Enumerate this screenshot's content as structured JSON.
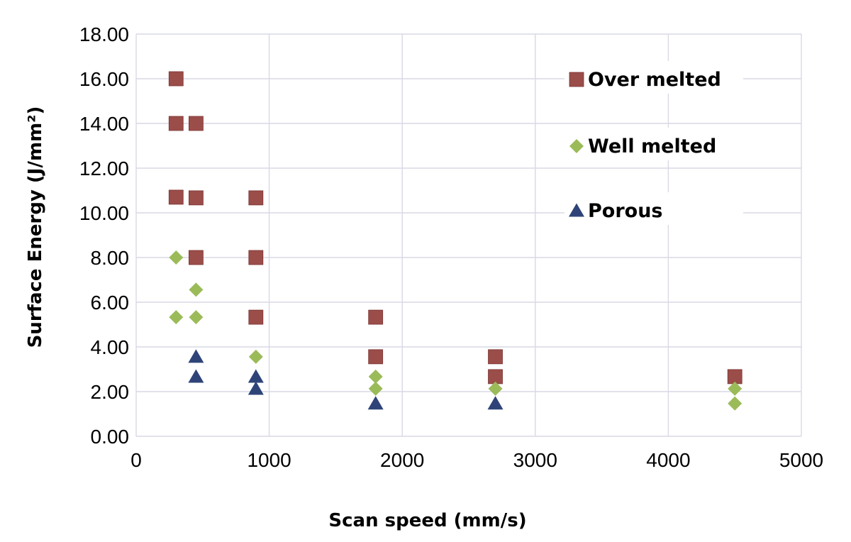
{
  "chart_data": {
    "type": "scatter",
    "xlabel": "Scan speed (mm/s)",
    "ylabel": "Surface Energy (J/mm²)",
    "xlim": [
      0,
      5000
    ],
    "ylim": [
      0,
      18
    ],
    "x_ticks": [
      "0",
      "1000",
      "2000",
      "3000",
      "4000",
      "5000"
    ],
    "y_ticks": [
      "0.00",
      "2.00",
      "4.00",
      "6.00",
      "8.00",
      "10.00",
      "12.00",
      "14.00",
      "16.00",
      "18.00"
    ],
    "grid": true,
    "legend_position": "top-right",
    "series": [
      {
        "name": "Over melted",
        "marker": "square",
        "color": "#9b4d4a",
        "points": [
          {
            "x": 300,
            "y": 16.0
          },
          {
            "x": 300,
            "y": 14.0
          },
          {
            "x": 450,
            "y": 14.0
          },
          {
            "x": 300,
            "y": 10.7
          },
          {
            "x": 450,
            "y": 10.67
          },
          {
            "x": 900,
            "y": 10.67
          },
          {
            "x": 450,
            "y": 8.0
          },
          {
            "x": 900,
            "y": 8.0
          },
          {
            "x": 900,
            "y": 5.33
          },
          {
            "x": 1800,
            "y": 5.33
          },
          {
            "x": 1800,
            "y": 3.56
          },
          {
            "x": 2700,
            "y": 3.56
          },
          {
            "x": 2700,
            "y": 2.67
          },
          {
            "x": 4500,
            "y": 2.67
          }
        ]
      },
      {
        "name": "Well melted",
        "marker": "diamond",
        "color": "#9bbb59",
        "points": [
          {
            "x": 300,
            "y": 8.0
          },
          {
            "x": 450,
            "y": 6.56
          },
          {
            "x": 300,
            "y": 5.33
          },
          {
            "x": 450,
            "y": 5.33
          },
          {
            "x": 900,
            "y": 3.56
          },
          {
            "x": 1800,
            "y": 2.67
          },
          {
            "x": 1800,
            "y": 2.13
          },
          {
            "x": 2700,
            "y": 2.13
          },
          {
            "x": 4500,
            "y": 2.13
          },
          {
            "x": 4500,
            "y": 1.47
          }
        ]
      },
      {
        "name": "Porous",
        "marker": "triangle",
        "color": "#2e4478",
        "points": [
          {
            "x": 450,
            "y": 3.56
          },
          {
            "x": 450,
            "y": 2.67
          },
          {
            "x": 900,
            "y": 2.67
          },
          {
            "x": 900,
            "y": 2.13
          },
          {
            "x": 1800,
            "y": 1.47
          },
          {
            "x": 2700,
            "y": 1.47
          }
        ]
      }
    ]
  }
}
